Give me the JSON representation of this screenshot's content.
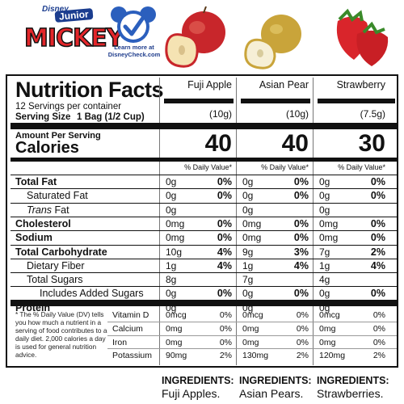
{
  "logos": {
    "disney_brand": "Disney",
    "junior": "Junior",
    "mickey": "MICKEY",
    "check_text_1": "Learn more at",
    "check_text_2": "DisneyCheck.com"
  },
  "facts": {
    "title": "Nutrition Facts",
    "servings": "12 Servings per container",
    "serving_size_label": "Serving Size",
    "serving_size_value": "1 Bag (1/2 Cup)",
    "amount_per_serving": "Amount Per Serving",
    "calories_label": "Calories",
    "dv_header": "% Daily Value*"
  },
  "columns": [
    {
      "name": "Fuji Apple",
      "weight": "(10g)",
      "calories": "40",
      "values": [
        [
          "0g",
          "0%"
        ],
        [
          "0g",
          "0%"
        ],
        [
          "0g",
          ""
        ],
        [
          "0mg",
          "0%"
        ],
        [
          "0mg",
          "0%"
        ],
        [
          "10g",
          "4%"
        ],
        [
          "1g",
          "4%"
        ],
        [
          "8g",
          ""
        ],
        [
          "0g",
          "0%"
        ],
        [
          "0g",
          ""
        ]
      ],
      "micros": [
        [
          "0mcg",
          "0%"
        ],
        [
          "0mg",
          "0%"
        ],
        [
          "0mg",
          "0%"
        ],
        [
          "90mg",
          "2%"
        ]
      ]
    },
    {
      "name": "Asian Pear",
      "weight": "(10g)",
      "calories": "40",
      "values": [
        [
          "0g",
          "0%"
        ],
        [
          "0g",
          "0%"
        ],
        [
          "0g",
          ""
        ],
        [
          "0mg",
          "0%"
        ],
        [
          "0mg",
          "0%"
        ],
        [
          "9g",
          "3%"
        ],
        [
          "1g",
          "4%"
        ],
        [
          "7g",
          ""
        ],
        [
          "0g",
          "0%"
        ],
        [
          "0g",
          ""
        ]
      ],
      "micros": [
        [
          "0mcg",
          "0%"
        ],
        [
          "0mg",
          "0%"
        ],
        [
          "0mg",
          "0%"
        ],
        [
          "130mg",
          "2%"
        ]
      ]
    },
    {
      "name": "Strawberry",
      "weight": "(7.5g)",
      "calories": "30",
      "values": [
        [
          "0g",
          "0%"
        ],
        [
          "0g",
          "0%"
        ],
        [
          "0g",
          ""
        ],
        [
          "0mg",
          "0%"
        ],
        [
          "0mg",
          "0%"
        ],
        [
          "7g",
          "2%"
        ],
        [
          "1g",
          "4%"
        ],
        [
          "4g",
          ""
        ],
        [
          "0g",
          "0%"
        ],
        [
          "0g",
          ""
        ]
      ],
      "micros": [
        [
          "0mcg",
          "0%"
        ],
        [
          "0mg",
          "0%"
        ],
        [
          "0mg",
          "0%"
        ],
        [
          "120mg",
          "2%"
        ]
      ]
    }
  ],
  "nutrients": [
    {
      "label": "Total Fat"
    },
    {
      "label": "Saturated Fat"
    },
    {
      "label": "Trans",
      "label_suffix": " Fat"
    },
    {
      "label": "Cholesterol"
    },
    {
      "label": "Sodium"
    },
    {
      "label": "Total Carbohydrate"
    },
    {
      "label": "Dietary Fiber"
    },
    {
      "label": "Total Sugars"
    },
    {
      "label": "Includes Added Sugars"
    },
    {
      "label": "Protein"
    }
  ],
  "micros": [
    "Vitamin D",
    "Calcium",
    "Iron",
    "Potassium"
  ],
  "footnote": "* The % Daily Value (DV) tells you how much a nutrient in a serving of food contributes to a daily diet. 2,000 calories a day is used for general nutrition advice.",
  "ingredients": {
    "heading": "INGREDIENTS:",
    "items": [
      "Fuji Apples.",
      "Asian Pears.",
      "Strawberries."
    ]
  },
  "colors": {
    "mickey_red": "#e3262a",
    "disney_blue": "#1b3d8f",
    "check_blue": "#2b5fbd"
  },
  "icons": [
    "disney-junior-mickey-logo",
    "disney-check-icon",
    "apple-image",
    "asian-pear-image",
    "strawberry-image"
  ]
}
